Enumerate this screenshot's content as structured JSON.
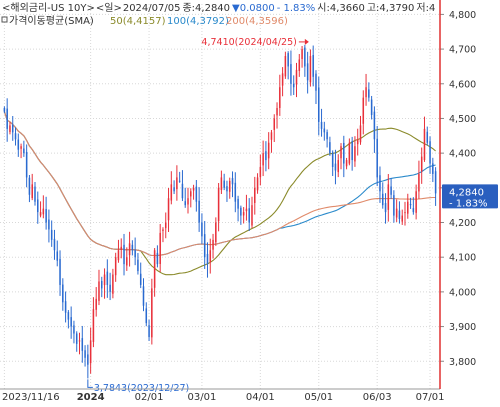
{
  "header": {
    "line1_symbol": "<해외금리-US 10Y>",
    "line1_period": "<일>",
    "line1_date": "2024/07/05",
    "line1_close_label": "종:4,2840",
    "line1_change": "▼0.0800",
    "line1_pct": "- 1.83%",
    "line1_open": "시:4,3660",
    "line1_high": "고:4,3790",
    "line1_low": "저:4"
  },
  "legend": {
    "title": "가격이동평균(SMA)",
    "items": [
      {
        "label": "50(4,4157)",
        "color": "#8a8a2a"
      },
      {
        "label": "100(4,3792)",
        "color": "#2a8acb"
      },
      {
        "label": "200(4,3596)",
        "color": "#e08a6a"
      }
    ]
  },
  "annotations": {
    "high_label": "4,7410(2024/04/25)",
    "low_label": "3,7843(2023/12/27)"
  },
  "price_tag": {
    "price": "4,2840",
    "pct": "- 1.83%",
    "value": 4.284
  },
  "colors": {
    "up": "#e8303a",
    "down": "#2a6ad0",
    "sma50": "#8a8a2a",
    "sma100": "#2a8acb",
    "sma200": "#e08a6a",
    "right_border": "#e03030",
    "tag_bg": "#2a5fbf"
  },
  "chart_data": {
    "type": "candlestick",
    "ylim": [
      3.72,
      4.83
    ],
    "y_ticks": [
      3.8,
      3.9,
      4.0,
      4.1,
      4.2,
      4.3,
      4.4,
      4.5,
      4.6,
      4.7,
      4.8
    ],
    "y_tick_labels": [
      "3,800",
      "3,900",
      "4,000",
      "4,100",
      "4,200",
      "4,300",
      "4,400",
      "4,500",
      "4,600",
      "4,700",
      "4,800"
    ],
    "x_tick_labels": [
      {
        "label": "2023/11/16",
        "index": 0,
        "bold": false
      },
      {
        "label": "2024",
        "index": 31,
        "bold": true
      },
      {
        "label": "02/01",
        "index": 52,
        "bold": false
      },
      {
        "label": "03/01",
        "index": 71,
        "bold": false
      },
      {
        "label": "04/01",
        "index": 92,
        "bold": false
      },
      {
        "label": "05/01",
        "index": 113,
        "bold": false
      },
      {
        "label": "06/03",
        "index": 134,
        "bold": false
      },
      {
        "label": "07/01",
        "index": 153,
        "bold": false
      }
    ],
    "close": [
      4.52,
      4.47,
      4.48,
      4.46,
      4.44,
      4.41,
      4.42,
      4.4,
      4.33,
      4.28,
      4.31,
      4.26,
      4.23,
      4.23,
      4.24,
      4.2,
      4.18,
      4.15,
      4.12,
      4.09,
      4.02,
      3.97,
      3.94,
      3.92,
      3.9,
      3.88,
      3.85,
      3.86,
      3.83,
      3.81,
      3.79,
      3.86,
      3.95,
      3.98,
      4.03,
      4.01,
      4.05,
      4.02,
      4.0,
      4.05,
      4.1,
      4.12,
      4.13,
      4.08,
      4.1,
      4.14,
      4.12,
      4.1,
      4.06,
      4.02,
      3.96,
      3.91,
      3.87,
      4.01,
      4.12,
      4.08,
      4.17,
      4.18,
      4.2,
      4.27,
      4.31,
      4.29,
      4.33,
      4.32,
      4.27,
      4.25,
      4.27,
      4.29,
      4.3,
      4.26,
      4.2,
      4.16,
      4.1,
      4.08,
      4.12,
      4.15,
      4.2,
      4.3,
      4.33,
      4.3,
      4.29,
      4.32,
      4.31,
      4.26,
      4.24,
      4.22,
      4.23,
      4.24,
      4.2,
      4.25,
      4.3,
      4.33,
      4.36,
      4.4,
      4.38,
      4.43,
      4.46,
      4.5,
      4.53,
      4.59,
      4.63,
      4.68,
      4.65,
      4.6,
      4.59,
      4.64,
      4.67,
      4.7,
      4.65,
      4.61,
      4.68,
      4.62,
      4.58,
      4.49,
      4.47,
      4.46,
      4.44,
      4.4,
      4.36,
      4.35,
      4.38,
      4.42,
      4.37,
      4.38,
      4.43,
      4.38,
      4.42,
      4.44,
      4.48,
      4.56,
      4.59,
      4.56,
      4.51,
      4.44,
      4.33,
      4.29,
      4.25,
      4.23,
      4.31,
      4.28,
      4.22,
      4.24,
      4.21,
      4.22,
      4.23,
      4.26,
      4.25,
      4.23,
      4.29,
      4.34,
      4.39,
      4.47,
      4.43,
      4.37,
      4.34,
      4.284
    ]
  }
}
